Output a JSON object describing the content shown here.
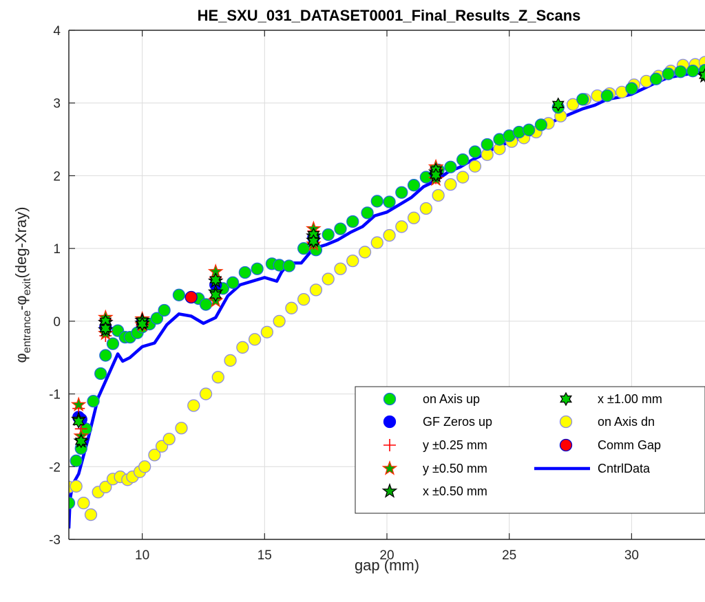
{
  "chart_data": {
    "type": "scatter",
    "title": "HE_SXU_031_DATASET0001_Final_Results_Z_Scans",
    "xlabel": "gap (mm)",
    "ylabel": {
      "phi1": "φ",
      "sub1": "entrance",
      "minus": "-",
      "phi2": "φ",
      "sub2": "exit",
      "unit": "(deg-Xray)"
    },
    "xlim": [
      7,
      33
    ],
    "ylim": [
      -3,
      4
    ],
    "xticks": [
      {
        "v": 10,
        "label": "10"
      },
      {
        "v": 15,
        "label": "15"
      },
      {
        "v": 20,
        "label": "20"
      },
      {
        "v": 25,
        "label": "25"
      },
      {
        "v": 30,
        "label": "30"
      }
    ],
    "yticks": [
      {
        "v": -3,
        "label": "-3"
      },
      {
        "v": -2,
        "label": "-2"
      },
      {
        "v": -1,
        "label": "-1"
      },
      {
        "v": 0,
        "label": "0"
      },
      {
        "v": 1,
        "label": "1"
      },
      {
        "v": 2,
        "label": "2"
      },
      {
        "v": 3,
        "label": "3"
      },
      {
        "v": 4,
        "label": "4"
      }
    ],
    "grid": true,
    "legend_placement": "bottom-right",
    "legend": [
      {
        "key": "on_axis_up",
        "label": "on Axis up",
        "marker": "circle",
        "color": "#00dd00",
        "edge": "#1f6cd6"
      },
      {
        "key": "gf_zeros_up",
        "label": "GF Zeros up",
        "marker": "circle",
        "color": "#0000ff",
        "edge": "#0000ff"
      },
      {
        "key": "y025",
        "label": "y ±0.25 mm",
        "marker": "plus",
        "color": "#ff0000"
      },
      {
        "key": "y050",
        "label": "y ±0.50 mm",
        "marker": "star",
        "color": "#00aa00",
        "edge": "#ff2a00"
      },
      {
        "key": "x050",
        "label": "x ±0.50 mm",
        "marker": "star",
        "color": "#00aa00",
        "edge": "#000000"
      },
      {
        "key": "x100",
        "label": "x ±1.00 mm",
        "marker": "hexagram",
        "color": "#00cc00",
        "edge": "#000000"
      },
      {
        "key": "on_axis_dn",
        "label": "on Axis dn",
        "marker": "circle",
        "color": "#ffff00",
        "edge": "#8c8ce0"
      },
      {
        "key": "comm_gap",
        "label": "Comm Gap",
        "marker": "circle",
        "color": "#ff0000",
        "edge": "#0000cc"
      },
      {
        "key": "cntrl",
        "label": "CntrlData",
        "marker": "line",
        "color": "#0000ff"
      }
    ],
    "series": {
      "on_axis_up": {
        "x": [
          7.0,
          7.3,
          7.5,
          7.7,
          8.0,
          8.3,
          8.5,
          8.8,
          9.0,
          9.3,
          9.5,
          9.8,
          10.0,
          10.3,
          10.6,
          10.9,
          11.5,
          12.3,
          12.6,
          13.3,
          13.7,
          14.2,
          14.7,
          15.3,
          15.6,
          16.0,
          16.6,
          17.1,
          17.6,
          18.1,
          18.6,
          19.2,
          19.6,
          20.1,
          20.6,
          21.1,
          21.6,
          22.1,
          22.6,
          23.1,
          23.6,
          24.1,
          24.6,
          25.0,
          25.4,
          25.8,
          26.3,
          27.0,
          28.0,
          29.0,
          30.0,
          31.0,
          31.5,
          32.0,
          32.5,
          33.0
        ],
        "y": [
          -2.5,
          -1.92,
          -1.75,
          -1.48,
          -1.1,
          -0.72,
          -0.47,
          -0.31,
          -0.13,
          -0.22,
          -0.22,
          -0.16,
          -0.08,
          -0.04,
          0.04,
          0.15,
          0.36,
          0.31,
          0.23,
          0.45,
          0.53,
          0.67,
          0.72,
          0.79,
          0.77,
          0.76,
          1.0,
          0.98,
          1.19,
          1.27,
          1.37,
          1.49,
          1.65,
          1.64,
          1.77,
          1.87,
          1.98,
          2.08,
          2.12,
          2.22,
          2.33,
          2.43,
          2.5,
          2.55,
          2.6,
          2.63,
          2.7,
          2.94,
          3.05,
          3.1,
          3.2,
          3.33,
          3.4,
          3.43,
          3.44,
          3.45
        ]
      },
      "gf_zeros_up": {
        "x": [
          7.4,
          7.5,
          8.5,
          10.0,
          13.0,
          17.0,
          22.0
        ],
        "y": [
          -1.32,
          -1.35,
          -0.08,
          -0.02,
          0.5,
          1.15,
          2.03
        ]
      },
      "y025": {
        "x": [
          7.4,
          7.5,
          8.5,
          8.5,
          10.0,
          10.0,
          13.0,
          13.0,
          17.0,
          17.0,
          22.0,
          22.0
        ],
        "y": [
          -1.2,
          -1.48,
          0.02,
          -0.2,
          0.03,
          -0.06,
          0.6,
          0.32,
          1.24,
          1.07,
          2.1,
          1.97
        ]
      },
      "y050": {
        "x": [
          7.4,
          7.5,
          8.5,
          8.5,
          10.0,
          10.0,
          13.0,
          13.0,
          17.0,
          17.0,
          22.0,
          22.0
        ],
        "y": [
          -1.15,
          -1.58,
          0.05,
          -0.17,
          0.03,
          -0.05,
          0.68,
          0.28,
          1.27,
          1.06,
          2.12,
          1.95
        ]
      },
      "x050": {
        "x": [
          7.4,
          7.5,
          8.5,
          8.5,
          10.0,
          10.0,
          13.0,
          13.0,
          17.0,
          17.0,
          22.0,
          22.0,
          33.0
        ],
        "y": [
          -1.35,
          -1.65,
          -0.02,
          -0.12,
          0.01,
          -0.03,
          0.55,
          0.4,
          1.17,
          1.11,
          2.05,
          2.0,
          3.37
        ]
      },
      "x100": {
        "x": [
          7.4,
          7.5,
          8.5,
          8.5,
          10.0,
          10.0,
          13.0,
          13.0,
          17.0,
          17.0,
          22.0,
          22.0,
          27.0,
          33.0
        ],
        "y": [
          -1.38,
          -1.65,
          0.0,
          -0.1,
          0.0,
          -0.04,
          0.57,
          0.36,
          1.19,
          1.1,
          2.08,
          2.01,
          2.98,
          3.38
        ]
      },
      "on_axis_dn": {
        "x": [
          7.0,
          7.3,
          7.6,
          7.9,
          8.2,
          8.5,
          8.8,
          9.1,
          9.4,
          9.6,
          9.9,
          10.1,
          10.5,
          10.8,
          11.1,
          11.6,
          12.1,
          12.6,
          13.1,
          13.6,
          14.1,
          14.6,
          15.1,
          15.6,
          16.1,
          16.6,
          17.1,
          17.6,
          18.1,
          18.6,
          19.1,
          19.6,
          20.1,
          20.6,
          21.1,
          21.6,
          22.1,
          22.6,
          23.1,
          23.6,
          24.1,
          24.6,
          25.1,
          25.6,
          26.1,
          26.6,
          27.1,
          27.6,
          28.1,
          28.6,
          29.1,
          29.6,
          30.1,
          30.6,
          31.1,
          31.6,
          32.1,
          32.6,
          33.0
        ],
        "y": [
          -2.28,
          -2.27,
          -2.5,
          -2.66,
          -2.35,
          -2.28,
          -2.17,
          -2.14,
          -2.18,
          -2.14,
          -2.07,
          -2.0,
          -1.84,
          -1.72,
          -1.62,
          -1.47,
          -1.16,
          -1.0,
          -0.77,
          -0.54,
          -0.36,
          -0.25,
          -0.15,
          0.0,
          0.18,
          0.3,
          0.43,
          0.58,
          0.72,
          0.83,
          0.95,
          1.08,
          1.18,
          1.3,
          1.42,
          1.55,
          1.73,
          1.88,
          1.98,
          2.13,
          2.29,
          2.37,
          2.47,
          2.52,
          2.6,
          2.72,
          2.82,
          2.98,
          3.05,
          3.1,
          3.13,
          3.15,
          3.25,
          3.3,
          3.37,
          3.44,
          3.52,
          3.53,
          3.56
        ]
      },
      "comm_gap": {
        "x": [
          12.0
        ],
        "y": [
          0.33
        ]
      },
      "cntrl": {
        "x": [
          7.0,
          7.05,
          7.15,
          7.4,
          7.8,
          8.2,
          8.6,
          9.0,
          9.2,
          9.5,
          10.0,
          10.5,
          11.0,
          11.5,
          12.0,
          12.5,
          13.0,
          13.5,
          14.0,
          14.5,
          15.0,
          15.5,
          15.7,
          16.0,
          16.5,
          17.0,
          17.5,
          18.0,
          18.5,
          19.0,
          19.5,
          20.0,
          20.5,
          21.0,
          21.5,
          22.0,
          22.5,
          23.0,
          23.5,
          24.0,
          24.5,
          25.0,
          25.5,
          26.0,
          26.5,
          27.0,
          27.5,
          28.0,
          28.5,
          29.0,
          29.5,
          30.0,
          30.5,
          31.0,
          31.5,
          32.0,
          32.5,
          33.0
        ],
        "y": [
          -2.85,
          -2.45,
          -2.25,
          -2.1,
          -1.6,
          -1.05,
          -0.75,
          -0.45,
          -0.55,
          -0.5,
          -0.35,
          -0.3,
          -0.05,
          0.1,
          0.07,
          -0.03,
          0.05,
          0.35,
          0.5,
          0.55,
          0.6,
          0.55,
          0.68,
          0.8,
          0.8,
          1.0,
          1.05,
          1.12,
          1.22,
          1.3,
          1.45,
          1.5,
          1.6,
          1.7,
          1.85,
          1.93,
          2.05,
          2.12,
          2.22,
          2.3,
          2.4,
          2.46,
          2.52,
          2.58,
          2.7,
          2.78,
          2.85,
          2.92,
          2.97,
          3.05,
          3.08,
          3.12,
          3.2,
          3.28,
          3.35,
          3.38,
          3.41,
          3.43
        ]
      }
    }
  }
}
